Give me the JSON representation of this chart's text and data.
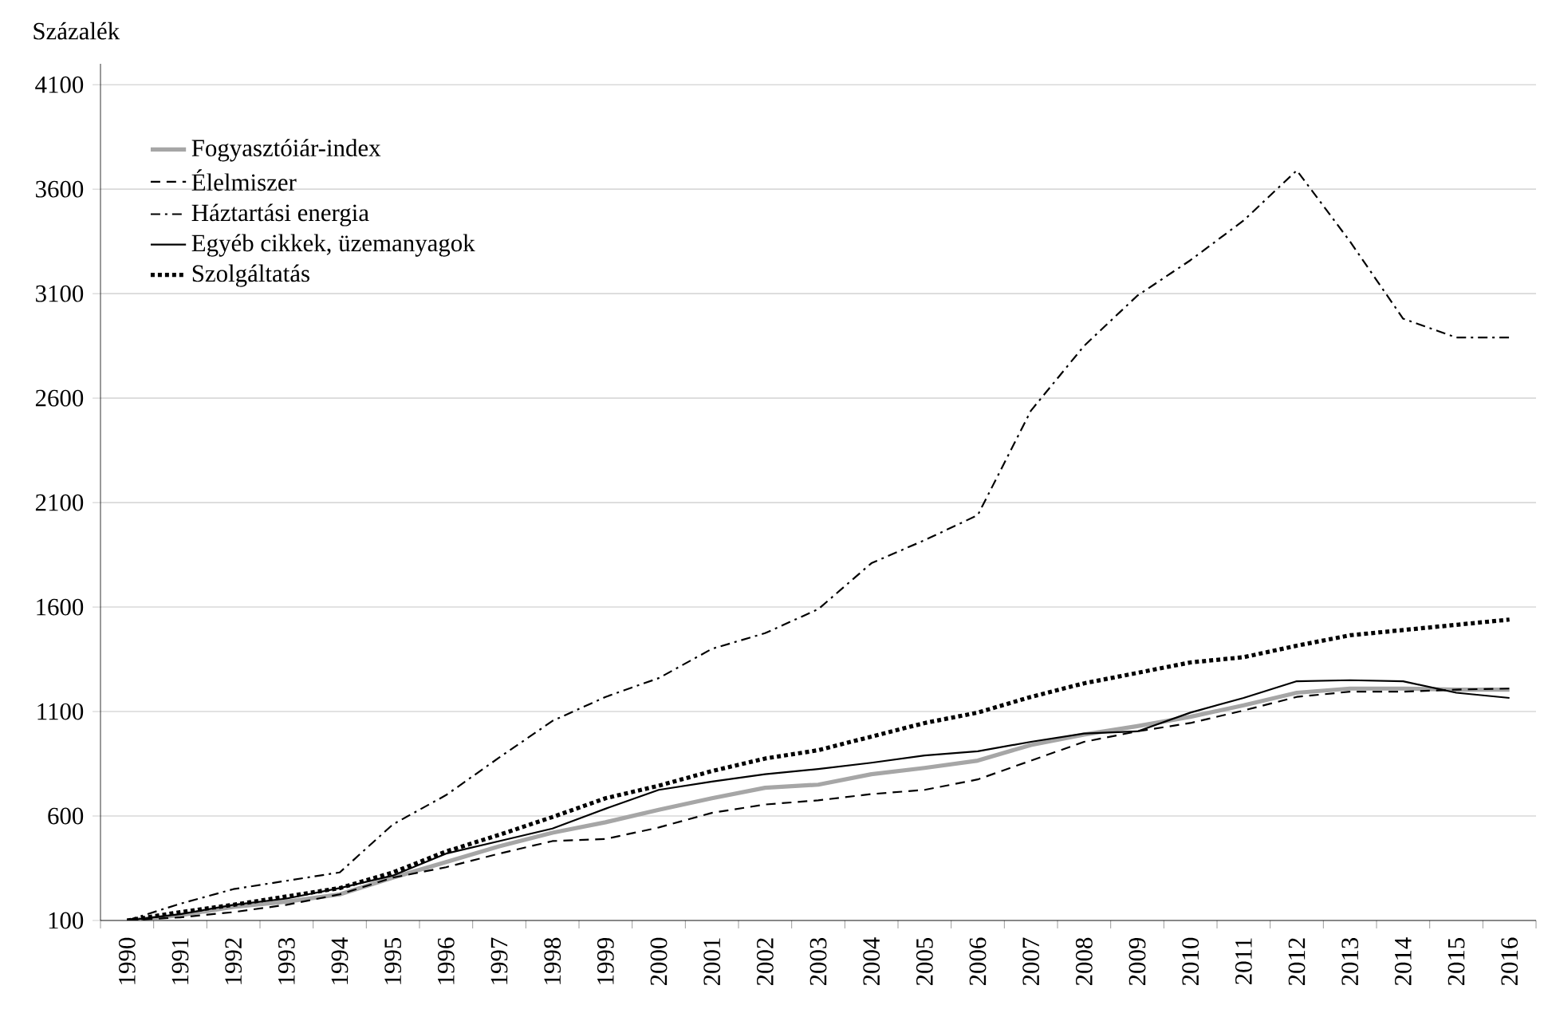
{
  "chart_data": {
    "type": "line",
    "ylabel": "Százalék",
    "categories": [
      "1990",
      "1991",
      "1992",
      "1993",
      "1994",
      "1995",
      "1996",
      "1997",
      "1998",
      "1999",
      "2000",
      "2001",
      "2002",
      "2003",
      "2004",
      "2005",
      "2006",
      "2007",
      "2008",
      "2009",
      "2010",
      "2011",
      "2012",
      "2013",
      "2014",
      "2015",
      "2016"
    ],
    "ylim": [
      100,
      4200
    ],
    "yticks": [
      100,
      600,
      1100,
      1600,
      2100,
      2600,
      3100,
      3600,
      4100
    ],
    "grid": "y",
    "legend": "top left",
    "marker": "none",
    "series": [
      {
        "name": "Fogyasztóiár-index",
        "color": "#a6a6a6",
        "line_style": "solid",
        "values": [
          100,
          125,
          165,
          190,
          225,
          305,
          380,
          455,
          520,
          570,
          630,
          685,
          735,
          750,
          800,
          830,
          865,
          940,
          990,
          1030,
          1075,
          1130,
          1190,
          1210,
          1210,
          1205,
          1205
        ]
      },
      {
        "name": "Élelmiszer",
        "color": "#000000",
        "line_style": "dashed",
        "values": [
          100,
          115,
          140,
          175,
          225,
          305,
          355,
          420,
          480,
          490,
          545,
          615,
          655,
          675,
          705,
          725,
          775,
          865,
          955,
          1005,
          1045,
          1105,
          1170,
          1195,
          1195,
          1205,
          1210
        ]
      },
      {
        "name": "Háztartási energia",
        "color": "#000000",
        "line_style": "dash-dot",
        "values": [
          100,
          180,
          250,
          290,
          330,
          560,
          700,
          880,
          1055,
          1170,
          1260,
          1400,
          1475,
          1590,
          1810,
          1920,
          2040,
          2540,
          2850,
          3090,
          3260,
          3450,
          3690,
          3350,
          2980,
          2890,
          2890
        ]
      },
      {
        "name": "Egyéb cikkek, üzemanyagok",
        "color": "#000000",
        "line_style": "solid",
        "values": [
          100,
          130,
          175,
          205,
          255,
          315,
          420,
          480,
          540,
          635,
          725,
          765,
          800,
          825,
          855,
          890,
          910,
          955,
          995,
          1005,
          1095,
          1165,
          1245,
          1250,
          1245,
          1190,
          1165
        ]
      },
      {
        "name": "Szolgáltatás",
        "color": "#000000",
        "line_style": "dotted",
        "values": [
          100,
          140,
          175,
          215,
          255,
          330,
          430,
          510,
          595,
          685,
          745,
          815,
          875,
          915,
          980,
          1045,
          1095,
          1170,
          1235,
          1285,
          1335,
          1360,
          1415,
          1465,
          1490,
          1515,
          1540
        ]
      }
    ]
  }
}
